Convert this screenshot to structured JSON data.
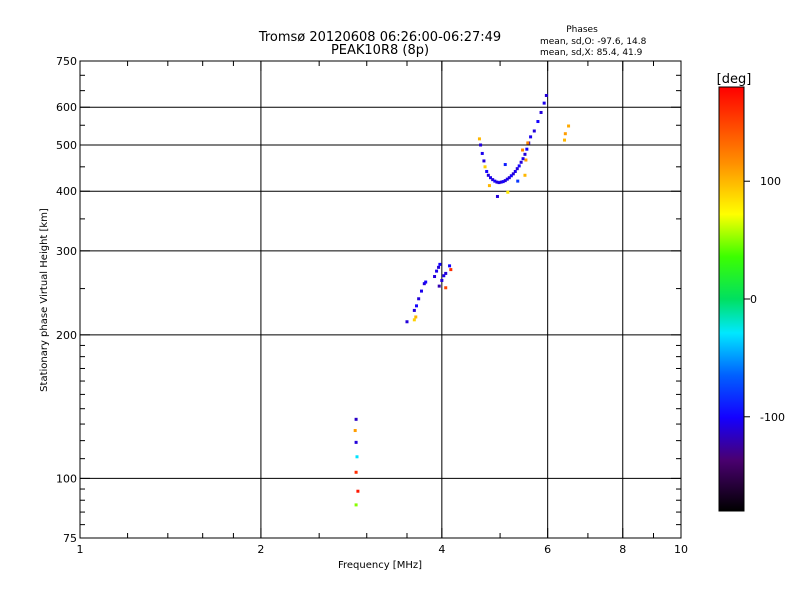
{
  "header": {
    "title_line1": "Tromsø 20120608 06:26:00-06:27:49",
    "title_line2": "PEAK10R8 (8p)",
    "stats_heading": "Phases",
    "stats_o": "mean, sd,O: -97.6, 14.8",
    "stats_x": "mean, sd,X:  85.4, 41.9"
  },
  "colorbar": {
    "label": "[deg]",
    "ticks": [
      {
        "value": 100,
        "label": "100"
      },
      {
        "value": 0,
        "label": "0"
      },
      {
        "value": -100,
        "label": "-100"
      }
    ],
    "range": [
      -180,
      180
    ]
  },
  "chart_data": {
    "type": "scatter",
    "title": "Tromsø 20120608 06:26:00-06:27:49",
    "subtitle": "PEAK10R8 (8p)",
    "xlabel": "Frequency [MHz]",
    "ylabel": "Stationary phase Virtual Height [km]",
    "xscale": "log",
    "yscale": "log",
    "xlim": [
      1,
      10
    ],
    "ylim": [
      75,
      750
    ],
    "grid": true,
    "x_major_ticks": [
      {
        "value": 1,
        "label": "1"
      },
      {
        "value": 2,
        "label": "2"
      },
      {
        "value": 4,
        "label": "4"
      },
      {
        "value": 6,
        "label": "6"
      },
      {
        "value": 8,
        "label": "8"
      },
      {
        "value": 10,
        "label": "10"
      }
    ],
    "x_minor_ticks": [
      1.2,
      1.4,
      1.6,
      1.8,
      2.5,
      3,
      3.5,
      5,
      7,
      9
    ],
    "y_major_ticks": [
      {
        "value": 75,
        "label": "75"
      },
      {
        "value": 100,
        "label": "100"
      },
      {
        "value": 200,
        "label": "200"
      },
      {
        "value": 300,
        "label": "300"
      },
      {
        "value": 400,
        "label": "400"
      },
      {
        "value": 500,
        "label": "500"
      },
      {
        "value": 600,
        "label": "600"
      },
      {
        "value": 750,
        "label": "750"
      }
    ],
    "y_gridlines": [
      100,
      200,
      300,
      400,
      500,
      600
    ],
    "x_gridlines": [
      2,
      4,
      6,
      8
    ],
    "y_minor_ticks": [
      80,
      85,
      90,
      95,
      110,
      120,
      130,
      140,
      150,
      160,
      170,
      180,
      190,
      250,
      350,
      450,
      550,
      650,
      700
    ],
    "color_encoding": "phase [deg]",
    "points": [
      {
        "x": 2.88,
        "y": 133,
        "phase": -115
      },
      {
        "x": 2.87,
        "y": 126,
        "phase": 110
      },
      {
        "x": 2.88,
        "y": 119,
        "phase": -110
      },
      {
        "x": 2.89,
        "y": 111,
        "phase": -30
      },
      {
        "x": 2.88,
        "y": 103,
        "phase": 160
      },
      {
        "x": 2.9,
        "y": 94,
        "phase": 170
      },
      {
        "x": 2.88,
        "y": 88,
        "phase": 50
      },
      {
        "x": 3.5,
        "y": 213,
        "phase": -110
      },
      {
        "x": 3.6,
        "y": 215,
        "phase": 90
      },
      {
        "x": 3.62,
        "y": 218,
        "phase": 100
      },
      {
        "x": 3.6,
        "y": 225,
        "phase": -110
      },
      {
        "x": 3.63,
        "y": 230,
        "phase": -100
      },
      {
        "x": 3.66,
        "y": 238,
        "phase": -110
      },
      {
        "x": 3.7,
        "y": 247,
        "phase": -105
      },
      {
        "x": 3.74,
        "y": 256,
        "phase": -110
      },
      {
        "x": 3.76,
        "y": 258,
        "phase": -100
      },
      {
        "x": 3.89,
        "y": 265,
        "phase": -110
      },
      {
        "x": 3.92,
        "y": 272,
        "phase": -105
      },
      {
        "x": 3.95,
        "y": 277,
        "phase": -110
      },
      {
        "x": 3.97,
        "y": 281,
        "phase": -100
      },
      {
        "x": 3.96,
        "y": 253,
        "phase": -120
      },
      {
        "x": 4.0,
        "y": 260,
        "phase": -110
      },
      {
        "x": 4.03,
        "y": 266,
        "phase": -105
      },
      {
        "x": 4.06,
        "y": 269,
        "phase": -110
      },
      {
        "x": 4.12,
        "y": 279,
        "phase": -100
      },
      {
        "x": 4.06,
        "y": 251,
        "phase": 150
      },
      {
        "x": 4.14,
        "y": 274,
        "phase": 160
      },
      {
        "x": 4.62,
        "y": 515,
        "phase": 100
      },
      {
        "x": 4.64,
        "y": 500,
        "phase": -110
      },
      {
        "x": 4.67,
        "y": 480,
        "phase": -105
      },
      {
        "x": 4.7,
        "y": 463,
        "phase": -110
      },
      {
        "x": 4.72,
        "y": 450,
        "phase": 90
      },
      {
        "x": 4.75,
        "y": 440,
        "phase": -100
      },
      {
        "x": 4.78,
        "y": 432,
        "phase": -110
      },
      {
        "x": 4.82,
        "y": 427,
        "phase": -105
      },
      {
        "x": 4.86,
        "y": 423,
        "phase": -110
      },
      {
        "x": 4.9,
        "y": 420,
        "phase": -100
      },
      {
        "x": 4.94,
        "y": 418,
        "phase": -110
      },
      {
        "x": 4.98,
        "y": 417,
        "phase": -105
      },
      {
        "x": 5.02,
        "y": 418,
        "phase": -110
      },
      {
        "x": 5.06,
        "y": 419,
        "phase": -100
      },
      {
        "x": 5.1,
        "y": 421,
        "phase": -110
      },
      {
        "x": 5.14,
        "y": 424,
        "phase": -105
      },
      {
        "x": 5.18,
        "y": 427,
        "phase": -110
      },
      {
        "x": 5.22,
        "y": 431,
        "phase": -100
      },
      {
        "x": 5.26,
        "y": 435,
        "phase": -110
      },
      {
        "x": 5.3,
        "y": 440,
        "phase": -105
      },
      {
        "x": 5.34,
        "y": 446,
        "phase": -110
      },
      {
        "x": 5.38,
        "y": 452,
        "phase": -100
      },
      {
        "x": 5.42,
        "y": 460,
        "phase": -110
      },
      {
        "x": 5.46,
        "y": 468,
        "phase": -105
      },
      {
        "x": 5.5,
        "y": 478,
        "phase": -110
      },
      {
        "x": 5.54,
        "y": 490,
        "phase": -100
      },
      {
        "x": 5.58,
        "y": 505,
        "phase": -110
      },
      {
        "x": 5.62,
        "y": 520,
        "phase": -105
      },
      {
        "x": 5.7,
        "y": 535,
        "phase": -110
      },
      {
        "x": 5.78,
        "y": 560,
        "phase": -100
      },
      {
        "x": 5.85,
        "y": 585,
        "phase": -110
      },
      {
        "x": 5.92,
        "y": 612,
        "phase": -105
      },
      {
        "x": 5.97,
        "y": 635,
        "phase": -110
      },
      {
        "x": 4.8,
        "y": 411,
        "phase": 100
      },
      {
        "x": 4.95,
        "y": 390,
        "phase": -110
      },
      {
        "x": 5.15,
        "y": 398,
        "phase": 80
      },
      {
        "x": 5.1,
        "y": 455,
        "phase": -90
      },
      {
        "x": 5.35,
        "y": 420,
        "phase": -80
      },
      {
        "x": 5.45,
        "y": 488,
        "phase": 120
      },
      {
        "x": 5.52,
        "y": 465,
        "phase": 110
      },
      {
        "x": 5.5,
        "y": 432,
        "phase": 100
      },
      {
        "x": 5.56,
        "y": 505,
        "phase": 120
      },
      {
        "x": 6.4,
        "y": 512,
        "phase": 100
      },
      {
        "x": 6.42,
        "y": 528,
        "phase": 110
      },
      {
        "x": 6.5,
        "y": 548,
        "phase": 105
      }
    ]
  }
}
